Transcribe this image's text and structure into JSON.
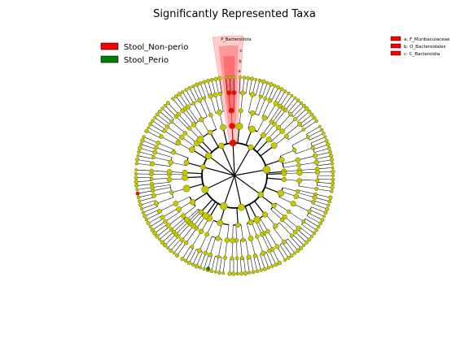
{
  "title": "Significantly Represented Taxa",
  "legend": [
    {
      "label": "Stool_Non-perio",
      "color": "#ff0000"
    },
    {
      "label": "Stool_Perio",
      "color": "#008000"
    }
  ],
  "highlight_label": "P_Bacteroidota",
  "clade_key": [
    {
      "letter": "a",
      "text": "a: F_Muribaculaceae",
      "color": "#ff0000"
    },
    {
      "letter": "b",
      "text": "b: O_Bacteroidales",
      "color": "#ff0000"
    },
    {
      "letter": "c",
      "text": "c: C_Bacteroidia",
      "color": "#ff0000"
    }
  ],
  "colors": {
    "node": "#c8c800",
    "node_stroke": "#556000",
    "edge": "#000000",
    "enriched_nonperio": "#ff0000",
    "enriched_perio": "#008000",
    "shade_light": "#ffcccc",
    "shade_mid": "#ff9999",
    "shade_dark": "#ff7070"
  }
}
